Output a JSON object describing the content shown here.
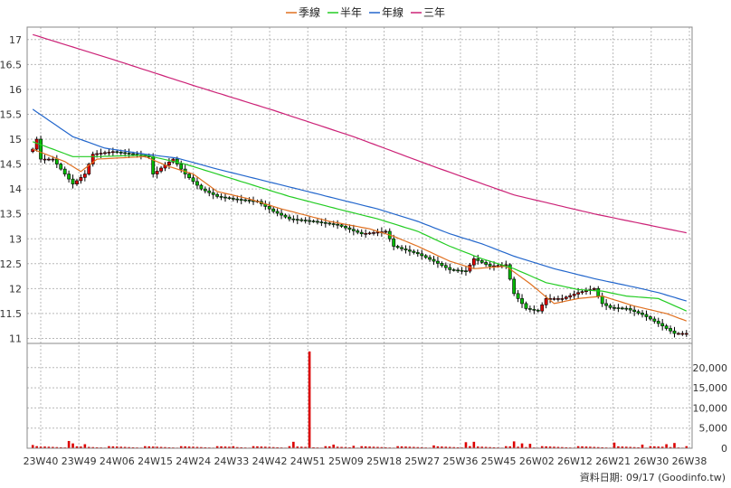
{
  "chart_data": {
    "type": "candlestick",
    "legend": [
      {
        "label": "季線",
        "color": "#e07020"
      },
      {
        "label": "半年",
        "color": "#22cc22"
      },
      {
        "label": "年線",
        "color": "#2266cc"
      },
      {
        "label": "三年",
        "color": "#cc2277"
      }
    ],
    "legend_position": "top-center",
    "grid": true,
    "price_axis": {
      "range": [
        10.9,
        17.25
      ],
      "ticks": [
        11,
        11.5,
        12,
        12.5,
        13,
        13.5,
        14,
        14.5,
        15,
        15.5,
        16,
        16.5,
        17
      ],
      "tick_labels": [
        "11",
        "11.5",
        "12",
        "12.5",
        "13",
        "13.5",
        "14",
        "14.5",
        "15",
        "15.5",
        "16",
        "16.5",
        "17"
      ]
    },
    "volume_axis": {
      "range": [
        0,
        26000
      ],
      "ticks": [
        0,
        5000,
        10000,
        15000,
        20000
      ],
      "tick_labels": [
        "0",
        "5,000",
        "10,000",
        "15,000",
        "20,000"
      ]
    },
    "x_labels": [
      "23W40",
      "23W49",
      "24W06",
      "24W15",
      "24W24",
      "24W33",
      "24W42",
      "24W51",
      "25W09",
      "25W18",
      "25W27",
      "25W36",
      "25W45",
      "26W02",
      "26W12",
      "26W21",
      "26W30",
      "26W38"
    ],
    "source_note": "資料日期: 09/17 (Goodinfo.tw)",
    "up_color": "#dd0000",
    "down_color": "#00bb00",
    "anchors": {
      "close": [
        [
          0,
          14.8
        ],
        [
          1,
          15.0
        ],
        [
          2,
          14.6
        ],
        [
          5,
          14.6
        ],
        [
          7,
          14.4
        ],
        [
          10,
          14.1
        ],
        [
          13,
          14.3
        ],
        [
          15,
          14.7
        ],
        [
          20,
          14.75
        ],
        [
          25,
          14.7
        ],
        [
          29,
          14.65
        ],
        [
          30,
          14.3
        ],
        [
          35,
          14.6
        ],
        [
          38,
          14.3
        ],
        [
          42,
          14.0
        ],
        [
          46,
          13.85
        ],
        [
          50,
          13.8
        ],
        [
          56,
          13.75
        ],
        [
          60,
          13.55
        ],
        [
          64,
          13.4
        ],
        [
          70,
          13.35
        ],
        [
          76,
          13.28
        ],
        [
          82,
          13.1
        ],
        [
          88,
          13.15
        ],
        [
          90,
          12.85
        ],
        [
          96,
          12.7
        ],
        [
          100,
          12.55
        ],
        [
          104,
          12.38
        ],
        [
          108,
          12.35
        ],
        [
          110,
          12.6
        ],
        [
          114,
          12.45
        ],
        [
          118,
          12.48
        ],
        [
          120,
          11.9
        ],
        [
          123,
          11.6
        ],
        [
          126,
          11.55
        ],
        [
          128,
          11.8
        ],
        [
          132,
          11.8
        ],
        [
          136,
          11.92
        ],
        [
          140,
          12.0
        ],
        [
          142,
          11.7
        ],
        [
          144,
          11.62
        ],
        [
          148,
          11.6
        ],
        [
          152,
          11.48
        ],
        [
          156,
          11.3
        ],
        [
          160,
          11.1
        ]
      ],
      "ma_q": [
        [
          0,
          14.8
        ],
        [
          8,
          14.55
        ],
        [
          12,
          14.35
        ],
        [
          16,
          14.6
        ],
        [
          28,
          14.65
        ],
        [
          34,
          14.45
        ],
        [
          40,
          14.3
        ],
        [
          46,
          13.95
        ],
        [
          54,
          13.8
        ],
        [
          62,
          13.6
        ],
        [
          74,
          13.35
        ],
        [
          84,
          13.2
        ],
        [
          90,
          13.05
        ],
        [
          96,
          12.85
        ],
        [
          104,
          12.55
        ],
        [
          110,
          12.4
        ],
        [
          118,
          12.45
        ],
        [
          124,
          12.1
        ],
        [
          130,
          11.7
        ],
        [
          136,
          11.8
        ],
        [
          142,
          11.85
        ],
        [
          150,
          11.65
        ],
        [
          158,
          11.5
        ],
        [
          163,
          11.35
        ]
      ],
      "ma_half": [
        [
          0,
          14.95
        ],
        [
          10,
          14.65
        ],
        [
          16,
          14.65
        ],
        [
          28,
          14.68
        ],
        [
          38,
          14.5
        ],
        [
          46,
          14.3
        ],
        [
          56,
          14.05
        ],
        [
          64,
          13.85
        ],
        [
          76,
          13.6
        ],
        [
          86,
          13.4
        ],
        [
          96,
          13.15
        ],
        [
          104,
          12.85
        ],
        [
          112,
          12.6
        ],
        [
          120,
          12.4
        ],
        [
          128,
          12.12
        ],
        [
          136,
          11.98
        ],
        [
          142,
          11.95
        ],
        [
          148,
          11.85
        ],
        [
          156,
          11.8
        ],
        [
          163,
          11.55
        ]
      ],
      "ma_year": [
        [
          0,
          15.6
        ],
        [
          10,
          15.05
        ],
        [
          18,
          14.82
        ],
        [
          28,
          14.7
        ],
        [
          36,
          14.62
        ],
        [
          46,
          14.4
        ],
        [
          56,
          14.2
        ],
        [
          66,
          14.0
        ],
        [
          76,
          13.8
        ],
        [
          86,
          13.6
        ],
        [
          96,
          13.35
        ],
        [
          104,
          13.1
        ],
        [
          112,
          12.9
        ],
        [
          120,
          12.65
        ],
        [
          130,
          12.4
        ],
        [
          140,
          12.2
        ],
        [
          150,
          12.03
        ],
        [
          156,
          11.92
        ],
        [
          163,
          11.75
        ]
      ],
      "ma_3y": [
        [
          0,
          17.1
        ],
        [
          20,
          16.6
        ],
        [
          40,
          16.08
        ],
        [
          60,
          15.58
        ],
        [
          80,
          15.05
        ],
        [
          100,
          14.45
        ],
        [
          120,
          13.88
        ],
        [
          140,
          13.5
        ],
        [
          163,
          13.12
        ]
      ]
    },
    "volume_samples": [
      [
        0,
        800
      ],
      [
        2,
        400
      ],
      [
        9,
        1800
      ],
      [
        10,
        1200
      ],
      [
        13,
        1000
      ],
      [
        50,
        500
      ],
      [
        65,
        1600
      ],
      [
        69,
        24000
      ],
      [
        75,
        900
      ],
      [
        80,
        600
      ],
      [
        100,
        700
      ],
      [
        108,
        1500
      ],
      [
        110,
        1600
      ],
      [
        120,
        1700
      ],
      [
        122,
        1200
      ],
      [
        124,
        1100
      ],
      [
        145,
        1400
      ],
      [
        152,
        900
      ],
      [
        158,
        1000
      ],
      [
        160,
        1300
      ]
    ]
  }
}
